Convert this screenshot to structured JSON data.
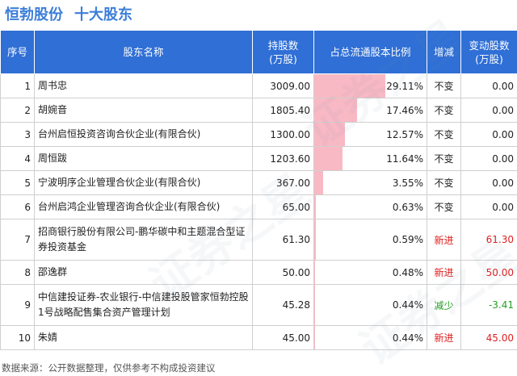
{
  "title": {
    "company": "恒勃股份",
    "subtitle": "十大股东"
  },
  "columns": {
    "index": "序号",
    "name": "股东名称",
    "shares_l1": "持股数",
    "shares_l2": "(万股)",
    "ratio": "占总流通股本比例",
    "change": "增减",
    "delta_l1": "变动股数",
    "delta_l2": "(万股)"
  },
  "rows": [
    {
      "index": "1",
      "name": "周书忠",
      "shares": "3009.00",
      "ratio": "29.11%",
      "change": "不变",
      "delta": "0.00"
    },
    {
      "index": "2",
      "name": "胡婉音",
      "shares": "1805.40",
      "ratio": "17.46%",
      "change": "不变",
      "delta": "0.00"
    },
    {
      "index": "3",
      "name": "台州启恒投资咨询合伙企业(有限合伙)",
      "shares": "1300.00",
      "ratio": "12.57%",
      "change": "不变",
      "delta": "0.00"
    },
    {
      "index": "4",
      "name": "周恒跋",
      "shares": "1203.60",
      "ratio": "11.64%",
      "change": "不变",
      "delta": "0.00"
    },
    {
      "index": "5",
      "name": "宁波明序企业管理合伙企业(有限合伙)",
      "shares": "367.00",
      "ratio": "3.55%",
      "change": "不变",
      "delta": "0.00"
    },
    {
      "index": "6",
      "name": "台州启鸿企业管理咨询合伙企业(有限合伙)",
      "shares": "65.00",
      "ratio": "0.63%",
      "change": "不变",
      "delta": "0.00"
    },
    {
      "index": "7",
      "name": "招商银行股份有限公司-鹏华碳中和主题混合型证券投资基金",
      "shares": "61.30",
      "ratio": "0.59%",
      "change": "新进",
      "delta": "61.30"
    },
    {
      "index": "8",
      "name": "邵逸群",
      "shares": "50.00",
      "ratio": "0.48%",
      "change": "新进",
      "delta": "50.00"
    },
    {
      "index": "9",
      "name": "中信建投证券-农业银行-中信建投股管家恒勃控股1号战略配售集合资产管理计划",
      "shares": "45.28",
      "ratio": "0.44%",
      "change": "减少",
      "delta": "-3.41"
    },
    {
      "index": "10",
      "name": "朱婧",
      "shares": "45.00",
      "ratio": "0.44%",
      "change": "新进",
      "delta": "45.00"
    }
  ],
  "bar_fractions": [
    0.2911,
    0.1746,
    0.1257,
    0.1164,
    0.0355,
    0.0063,
    0.0059,
    0.0048,
    0.0044,
    0.0044
  ],
  "colors": {
    "header_bg": "#2f6fd6",
    "title": "#3b7dd8",
    "bar": "#f9b9c4",
    "increase": "#e02020",
    "decrease": "#23a023"
  },
  "source_note": "数据来源：公开数据整理，仅供参考不构成投资建议",
  "watermark_text": "证券之星"
}
